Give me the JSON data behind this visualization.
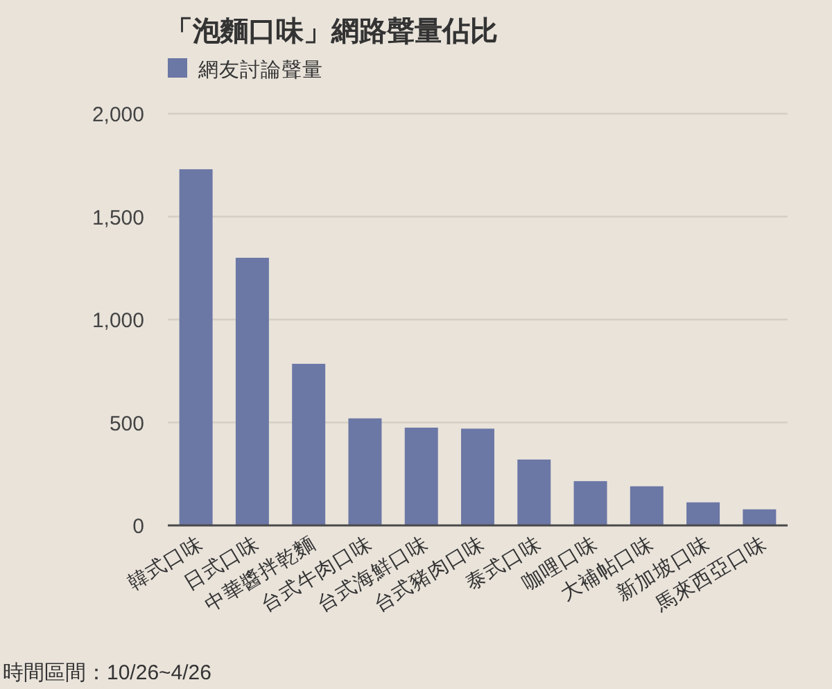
{
  "chart_data": {
    "type": "bar",
    "title": "「泡麵口味」網路聲量佔比",
    "categories": [
      "韓式口味",
      "日式口味",
      "中華醬拌乾麵",
      "台式牛肉口味",
      "台式海鮮口味",
      "台式豬肉口味",
      "泰式口味",
      "咖哩口味",
      "大補帖口味",
      "新加坡口味",
      "馬來西亞口味"
    ],
    "series": [
      {
        "name": "網友討論聲量",
        "color": "#6b77a5",
        "values": [
          1730,
          1300,
          785,
          520,
          475,
          470,
          320,
          215,
          190,
          112,
          78
        ]
      }
    ],
    "ylim": [
      0,
      2000
    ],
    "yticks": [
      0,
      500,
      {
        "value": 1000,
        "label": "1,000"
      },
      {
        "value": 1500,
        "label": "1,500"
      },
      {
        "value": 2000,
        "label": "2,000"
      }
    ],
    "grid": "y",
    "legend": "top left",
    "annotations": [
      "時間區間：10/26~4/26"
    ]
  }
}
